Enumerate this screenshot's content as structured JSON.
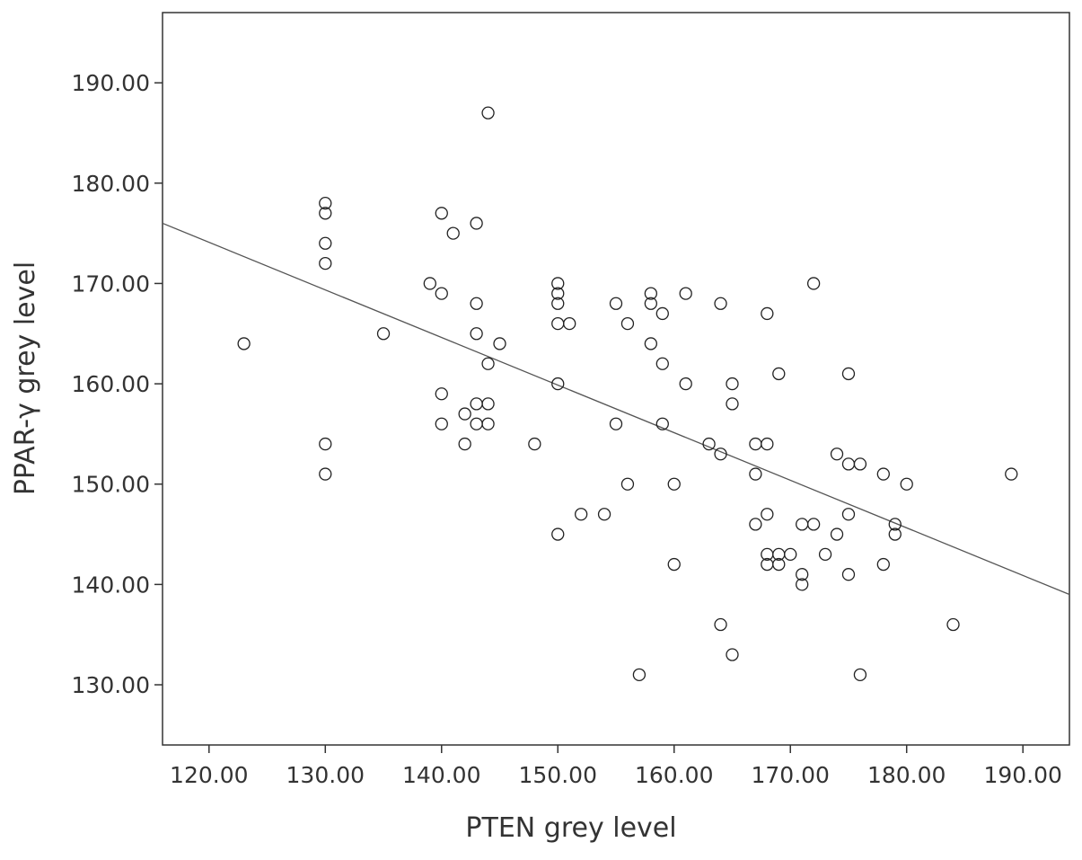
{
  "chart_data": {
    "type": "scatter",
    "title": "",
    "xlabel": "PTEN  grey level",
    "ylabel": "PPAR-γ  grey level",
    "xlim": [
      116,
      194
    ],
    "ylim": [
      124,
      197
    ],
    "x_ticks": [
      "120.00",
      "130.00",
      "140.00",
      "150.00",
      "160.00",
      "170.00",
      "180.00",
      "190.00"
    ],
    "y_ticks": [
      "130.00",
      "140.00",
      "150.00",
      "160.00",
      "170.00",
      "180.00",
      "190.00"
    ],
    "grid": false,
    "legend": "none",
    "marker": "open-circle",
    "points": [
      [
        123,
        164
      ],
      [
        130,
        178
      ],
      [
        130,
        177
      ],
      [
        130,
        174
      ],
      [
        130,
        172
      ],
      [
        130,
        154
      ],
      [
        130,
        151
      ],
      [
        135,
        165
      ],
      [
        139,
        170
      ],
      [
        140,
        177
      ],
      [
        140,
        169
      ],
      [
        140,
        159
      ],
      [
        140,
        156
      ],
      [
        141,
        175
      ],
      [
        142,
        157
      ],
      [
        142,
        154
      ],
      [
        143,
        176
      ],
      [
        143,
        168
      ],
      [
        143,
        165
      ],
      [
        143,
        158
      ],
      [
        143,
        156
      ],
      [
        144,
        187
      ],
      [
        144,
        162
      ],
      [
        144,
        158
      ],
      [
        144,
        156
      ],
      [
        145,
        164
      ],
      [
        148,
        154
      ],
      [
        150,
        170
      ],
      [
        150,
        169
      ],
      [
        150,
        168
      ],
      [
        150,
        166
      ],
      [
        150,
        160
      ],
      [
        150,
        145
      ],
      [
        151,
        166
      ],
      [
        152,
        147
      ],
      [
        154,
        147
      ],
      [
        155,
        168
      ],
      [
        155,
        156
      ],
      [
        156,
        166
      ],
      [
        156,
        150
      ],
      [
        157,
        131
      ],
      [
        158,
        169
      ],
      [
        158,
        168
      ],
      [
        158,
        164
      ],
      [
        159,
        167
      ],
      [
        159,
        162
      ],
      [
        159,
        156
      ],
      [
        160,
        150
      ],
      [
        160,
        142
      ],
      [
        161,
        169
      ],
      [
        161,
        160
      ],
      [
        163,
        154
      ],
      [
        164,
        168
      ],
      [
        164,
        153
      ],
      [
        164,
        136
      ],
      [
        165,
        160
      ],
      [
        165,
        158
      ],
      [
        165,
        133
      ],
      [
        167,
        154
      ],
      [
        167,
        151
      ],
      [
        167,
        146
      ],
      [
        168,
        167
      ],
      [
        168,
        154
      ],
      [
        168,
        147
      ],
      [
        168,
        143
      ],
      [
        168,
        142
      ],
      [
        169,
        161
      ],
      [
        169,
        143
      ],
      [
        169,
        142
      ],
      [
        170,
        143
      ],
      [
        171,
        146
      ],
      [
        171,
        141
      ],
      [
        171,
        140
      ],
      [
        172,
        170
      ],
      [
        172,
        146
      ],
      [
        173,
        143
      ],
      [
        174,
        153
      ],
      [
        174,
        145
      ],
      [
        175,
        161
      ],
      [
        175,
        152
      ],
      [
        175,
        147
      ],
      [
        175,
        141
      ],
      [
        176,
        152
      ],
      [
        176,
        131
      ],
      [
        178,
        151
      ],
      [
        178,
        142
      ],
      [
        179,
        146
      ],
      [
        179,
        145
      ],
      [
        180,
        150
      ],
      [
        184,
        136
      ],
      [
        189,
        151
      ]
    ],
    "fit_line": {
      "x": [
        116,
        194
      ],
      "y": [
        176,
        139
      ]
    }
  }
}
